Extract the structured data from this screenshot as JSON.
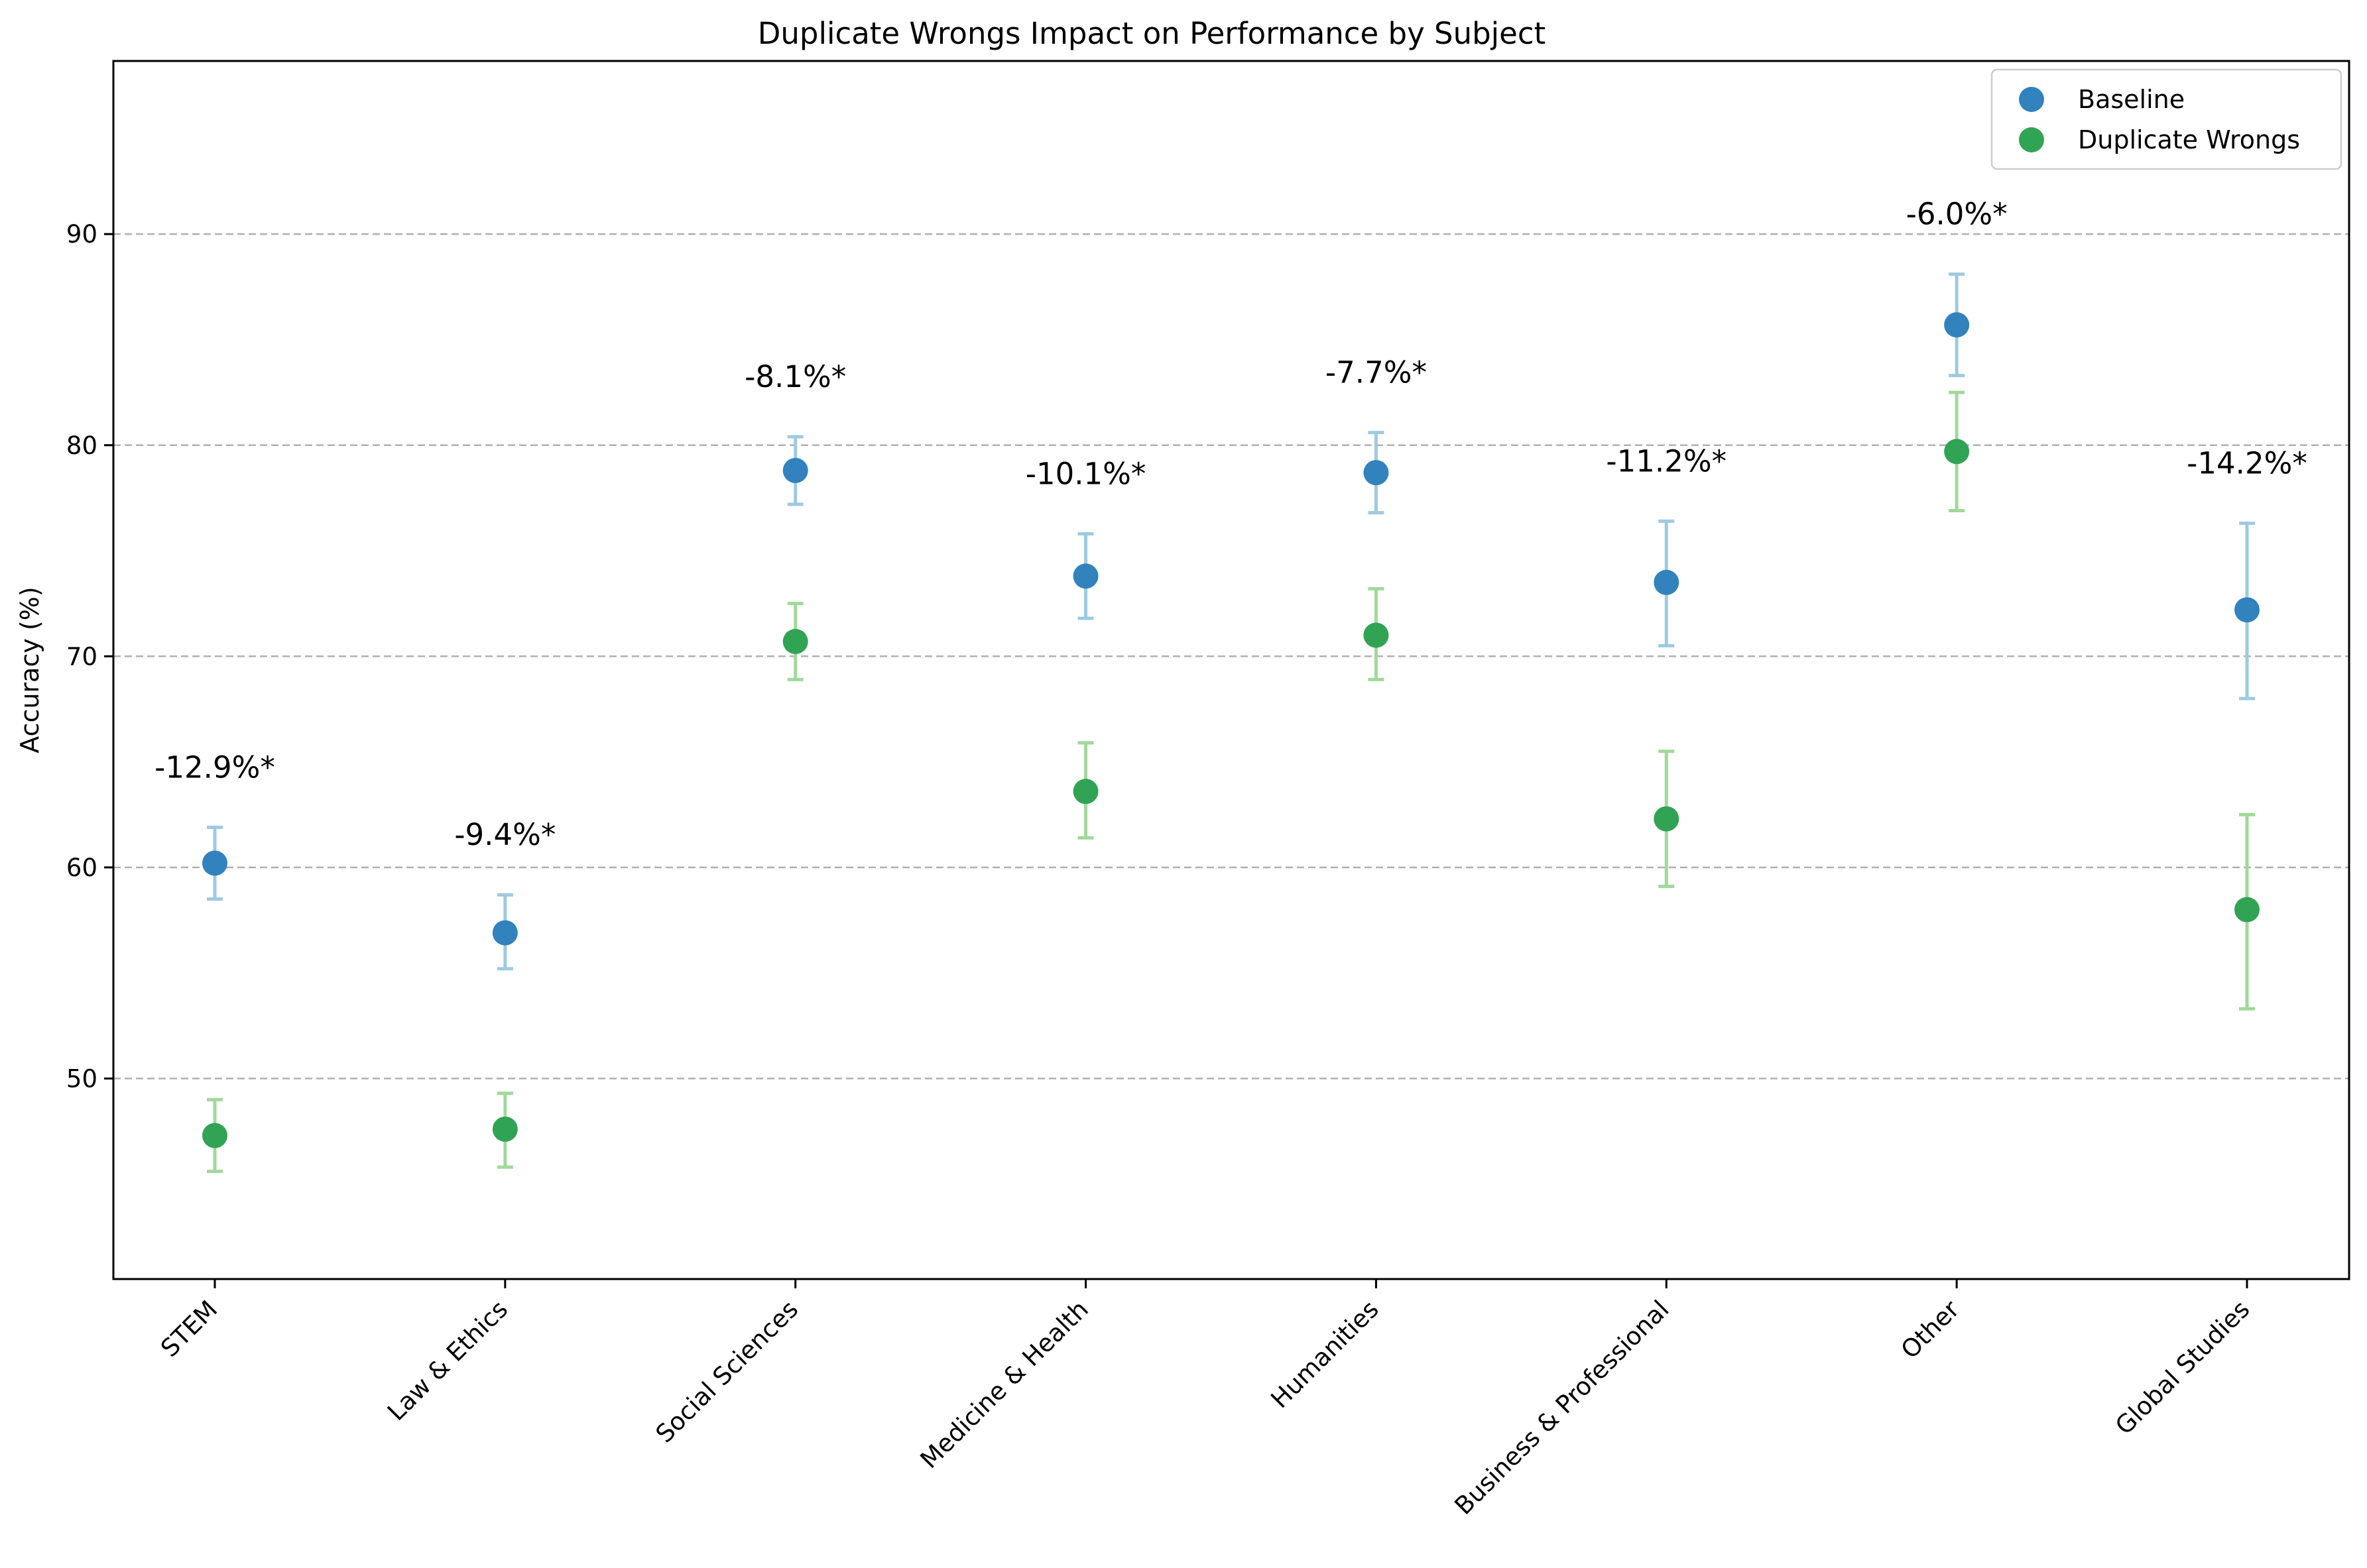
{
  "chart_data": {
    "type": "scatter",
    "title": "Duplicate Wrongs Impact on Performance by Subject",
    "xlabel": "",
    "ylabel": "Accuracy (%)",
    "ylim": [
      40.5,
      98.2
    ],
    "yticks": [
      50,
      60,
      70,
      80,
      90
    ],
    "grid": "horizontal dashed",
    "legend_position": "top-right",
    "categories": [
      "STEM",
      "Law & Ethics",
      "Social Sciences",
      "Medicine & Health",
      "Humanities",
      "Business & Professional",
      "Other",
      "Global Studies"
    ],
    "series": [
      {
        "name": "Baseline",
        "color": "#3182bd",
        "errorbar_color": "#9ecae1",
        "values": [
          60.2,
          56.9,
          78.8,
          73.8,
          78.7,
          73.5,
          85.7,
          72.2
        ],
        "error_low": [
          58.5,
          55.2,
          77.2,
          71.8,
          76.8,
          70.5,
          83.3,
          68.0
        ],
        "error_high": [
          61.9,
          58.7,
          80.4,
          75.8,
          80.6,
          76.4,
          88.1,
          76.3
        ]
      },
      {
        "name": "Duplicate Wrongs",
        "color": "#31a354",
        "errorbar_color": "#a1d99b",
        "values": [
          47.3,
          47.6,
          70.7,
          63.6,
          71.0,
          62.3,
          79.7,
          58.0
        ],
        "error_low": [
          45.6,
          45.8,
          68.9,
          61.4,
          68.9,
          59.1,
          76.9,
          53.3
        ],
        "error_high": [
          49.0,
          49.3,
          72.5,
          65.9,
          73.2,
          65.5,
          82.5,
          62.5
        ]
      }
    ],
    "annotations": [
      "-12.9%*",
      "-9.4%*",
      "-8.1%*",
      "-10.1%*",
      "-7.7%*",
      "-11.2%*",
      "-6.0%*",
      "-14.2%*"
    ]
  }
}
